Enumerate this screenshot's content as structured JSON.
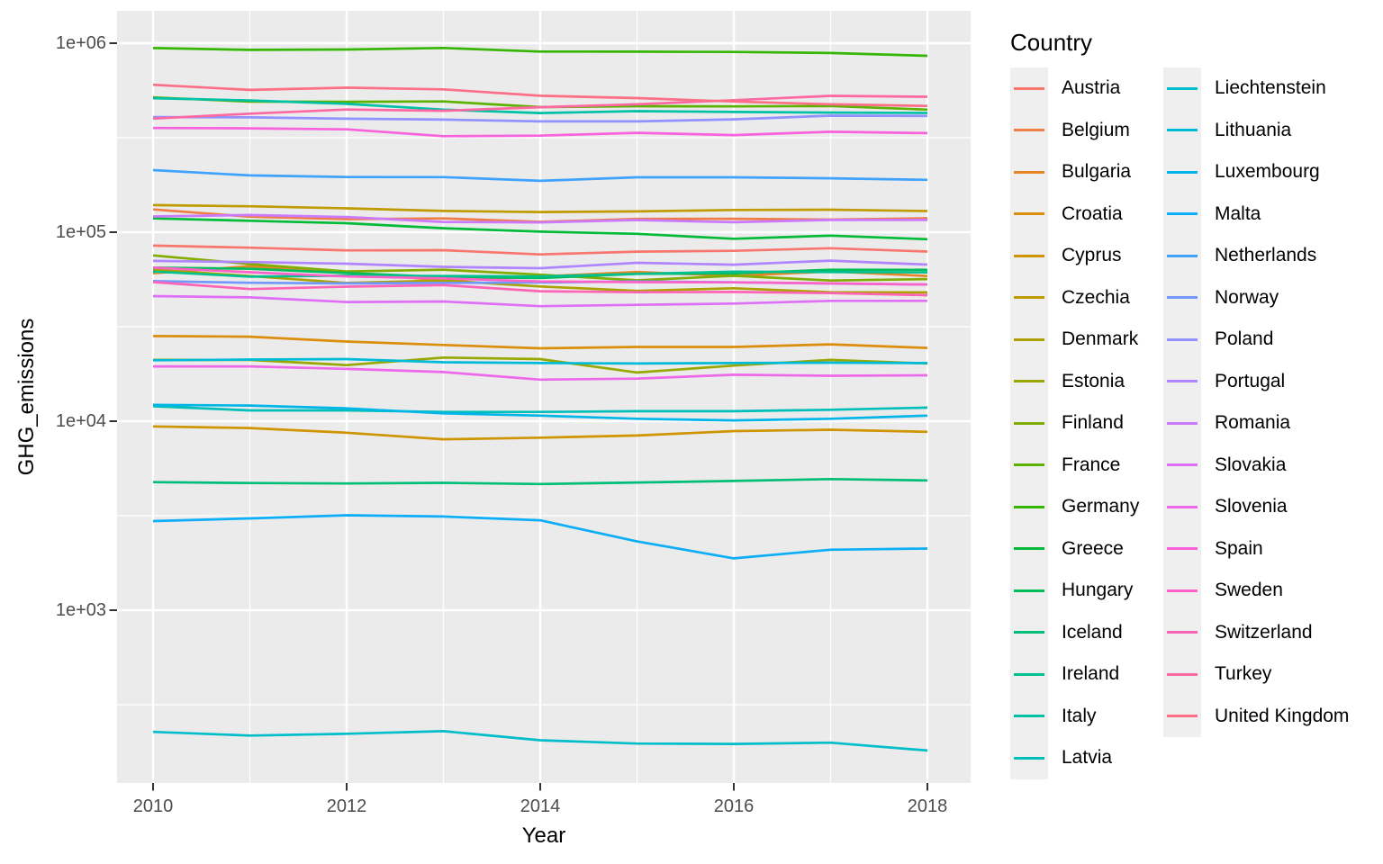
{
  "figure": {
    "y_axis_title": "GHG_emissions",
    "x_axis_title": "Year"
  },
  "legend": {
    "title": "Country",
    "position": "right",
    "columns": 2,
    "column_split": 17
  },
  "chart_data": {
    "type": "line",
    "title": "",
    "xlabel": "Year",
    "ylabel": "GHG_emissions",
    "x": [
      2010,
      2011,
      2012,
      2013,
      2014,
      2015,
      2016,
      2017,
      2018
    ],
    "x_ticks": [
      2010,
      2012,
      2014,
      2016,
      2018
    ],
    "x_minor_ticks": [
      2011,
      2013,
      2015,
      2017
    ],
    "y_scale": "log10",
    "y_ticks": [
      {
        "label": "1e+06",
        "value": 1000000
      },
      {
        "label": "1e+05",
        "value": 100000
      },
      {
        "label": "1e+04",
        "value": 10000
      },
      {
        "label": "1e+03",
        "value": 1000
      }
    ],
    "y_minor_tick_values": [
      316228,
      31623,
      3162,
      316
    ],
    "ylim_log10": [
      2.086,
      6.171
    ],
    "grid": true,
    "panel_background": "#ebebeb",
    "gridline_color": "#ffffff",
    "tick_color": "#333333",
    "tick_label_color": "#4d4d4d",
    "legend_position": "right",
    "series": [
      {
        "name": "Austria",
        "color": "#F8766D",
        "values": [
          84900,
          82800,
          80100,
          80300,
          76300,
          78900,
          79700,
          82300,
          79000
        ]
      },
      {
        "name": "Belgium",
        "color": "#EE7E45",
        "values": [
          131900,
          120700,
          117200,
          118300,
          113500,
          117600,
          117700,
          116600,
          118500
        ]
      },
      {
        "name": "Bulgaria",
        "color": "#E68626",
        "values": [
          60600,
          66100,
          61100,
          55600,
          58300,
          61600,
          58700,
          62100,
          58600
        ]
      },
      {
        "name": "Croatia",
        "color": "#DB8E0B",
        "values": [
          28200,
          28000,
          26400,
          25300,
          24300,
          24700,
          24700,
          25500,
          24400
        ]
      },
      {
        "name": "Cyprus",
        "color": "#CE9500",
        "values": [
          9380,
          9200,
          8690,
          8020,
          8180,
          8400,
          8860,
          9010,
          8790
        ]
      },
      {
        "name": "Czechia",
        "color": "#BF9B00",
        "values": [
          139100,
          137200,
          133700,
          129600,
          127800,
          128800,
          131100,
          131500,
          129400
        ]
      },
      {
        "name": "Denmark",
        "color": "#ADA100",
        "values": [
          63400,
          58600,
          53900,
          55500,
          51600,
          48900,
          50500,
          48100,
          48000
        ]
      },
      {
        "name": "Estonia",
        "color": "#99A700",
        "values": [
          21100,
          21100,
          19800,
          21700,
          21300,
          18100,
          19700,
          21100,
          20200
        ]
      },
      {
        "name": "Finland",
        "color": "#82AD00",
        "values": [
          75400,
          67800,
          62000,
          63300,
          59600,
          55600,
          58800,
          55500,
          56500
        ]
      },
      {
        "name": "France",
        "color": "#5DB200",
        "values": [
          517000,
          491000,
          490000,
          492000,
          459000,
          464000,
          463000,
          465000,
          445000
        ]
      },
      {
        "name": "Germany",
        "color": "#35B605",
        "values": [
          942000,
          922000,
          926000,
          944000,
          903000,
          902000,
          899000,
          887000,
          858000
        ]
      },
      {
        "name": "Greece",
        "color": "#00BA38",
        "values": [
          118300,
          115000,
          111600,
          105000,
          100700,
          98000,
          92300,
          95900,
          91800
        ]
      },
      {
        "name": "Hungary",
        "color": "#00BC5B",
        "values": [
          64900,
          64100,
          60800,
          57900,
          57200,
          60200,
          60500,
          63300,
          63200
        ]
      },
      {
        "name": "Iceland",
        "color": "#00BE77",
        "values": [
          4760,
          4710,
          4680,
          4720,
          4650,
          4740,
          4830,
          4940,
          4860
        ]
      },
      {
        "name": "Ireland",
        "color": "#00C08F",
        "values": [
          61900,
          58200,
          58900,
          58600,
          58300,
          60200,
          61800,
          61500,
          61300
        ]
      },
      {
        "name": "Italy",
        "color": "#00C0A6",
        "values": [
          511900,
          497700,
          477800,
          445000,
          427200,
          437000,
          432900,
          429300,
          427500
        ]
      },
      {
        "name": "Latvia",
        "color": "#00BFB9",
        "values": [
          12000,
          11400,
          11400,
          11200,
          11200,
          11300,
          11300,
          11500,
          11800
        ]
      },
      {
        "name": "Liechtenstein",
        "color": "#00BDCA",
        "values": [
          227,
          217,
          222,
          229,
          205,
          197,
          196,
          199,
          181
        ]
      },
      {
        "name": "Lithuania",
        "color": "#00BBD8",
        "values": [
          21000,
          21200,
          21300,
          20500,
          20300,
          20200,
          20300,
          20400,
          20300
        ]
      },
      {
        "name": "Luxembourg",
        "color": "#00B5E8",
        "values": [
          12200,
          12100,
          11700,
          11000,
          10700,
          10300,
          10100,
          10300,
          10700
        ]
      },
      {
        "name": "Malta",
        "color": "#0CAEF7",
        "values": [
          2960,
          3060,
          3180,
          3130,
          2990,
          2310,
          1880,
          2090,
          2120
        ]
      },
      {
        "name": "Netherlands",
        "color": "#3FA3FE",
        "values": [
          213100,
          199800,
          195900,
          195600,
          187100,
          195200,
          195100,
          192900,
          189300
        ]
      },
      {
        "name": "Norway",
        "color": "#7298FF",
        "values": [
          55100,
          54000,
          53600,
          53900,
          54200,
          54900,
          54300,
          53500,
          52900
        ]
      },
      {
        "name": "Poland",
        "color": "#9191FF",
        "values": [
          406600,
          405200,
          398600,
          394300,
          385800,
          385800,
          395700,
          413800,
          412500
        ]
      },
      {
        "name": "Portugal",
        "color": "#B085FF",
        "values": [
          70500,
          69500,
          68100,
          65600,
          64500,
          68900,
          67300,
          70700,
          67400
        ]
      },
      {
        "name": "Romania",
        "color": "#CC7AFD",
        "values": [
          121200,
          123300,
          120300,
          113300,
          112700,
          116000,
          112900,
          116100,
          116100
        ]
      },
      {
        "name": "Slovakia",
        "color": "#DF6FF6",
        "values": [
          45900,
          45200,
          42700,
          43000,
          40600,
          41300,
          41900,
          43300,
          43300
        ]
      },
      {
        "name": "Slovenia",
        "color": "#EE68EA",
        "values": [
          19500,
          19500,
          18900,
          18200,
          16600,
          16800,
          17600,
          17400,
          17500
        ]
      },
      {
        "name": "Spain",
        "color": "#F962DC",
        "values": [
          355900,
          354400,
          350300,
          322200,
          324300,
          335700,
          326400,
          340100,
          334300
        ]
      },
      {
        "name": "Sweden",
        "color": "#FD62C9",
        "values": [
          64900,
          61400,
          58300,
          57000,
          54900,
          54400,
          54300,
          53600,
          52800
        ]
      },
      {
        "name": "Switzerland",
        "color": "#FF63B5",
        "values": [
          54500,
          50000,
          51500,
          52500,
          48700,
          48100,
          48300,
          47600,
          46400
        ]
      },
      {
        "name": "Turkey",
        "color": "#FF68A0",
        "values": [
          398900,
          423900,
          445600,
          438900,
          458800,
          475100,
          499300,
          526300,
          520900
        ]
      },
      {
        "name": "United Kingdom",
        "color": "#FC6F87",
        "values": [
          602300,
          566000,
          581800,
          569700,
          527300,
          512400,
          491300,
          475000,
          465900
        ]
      }
    ]
  }
}
